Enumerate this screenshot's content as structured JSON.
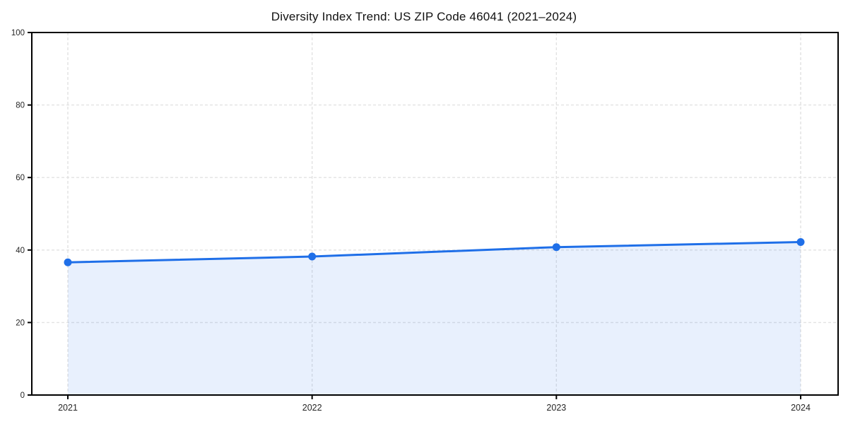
{
  "colors": {
    "line": "#1f6fe8",
    "fill": "rgba(31, 111, 232, 0.10)",
    "grid": "#e2e2e2",
    "axis": "#000000",
    "tick_label": "#262626",
    "title": "#111111",
    "background": "#ffffff"
  },
  "chart_data": {
    "type": "area",
    "title": "Diversity Index Trend: US ZIP Code 46041 (2021–2024)",
    "categories": [
      "2021",
      "2022",
      "2023",
      "2024"
    ],
    "series": [
      {
        "name": "Diversity Index",
        "values": [
          36.6,
          38.2,
          40.8,
          42.2
        ]
      }
    ],
    "xlabel": "",
    "ylabel": "",
    "ylim": [
      0,
      100
    ],
    "yticks": [
      0,
      20,
      40,
      60,
      80,
      100
    ],
    "grid": true,
    "grid_style": "dashed",
    "legend": "none",
    "marker": "circle",
    "line_width": 3,
    "marker_radius": 5.5
  }
}
